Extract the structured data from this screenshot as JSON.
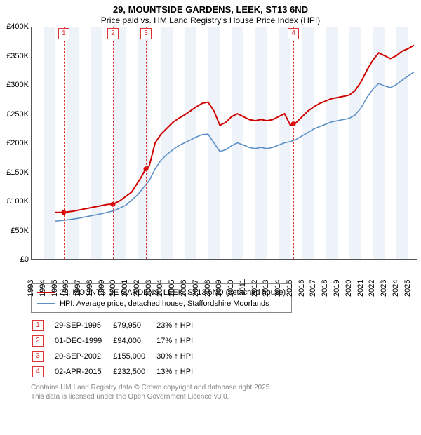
{
  "title": {
    "line1": "29, MOUNTSIDE GARDENS, LEEK, ST13 6ND",
    "line2": "Price paid vs. HM Land Registry's House Price Index (HPI)"
  },
  "chart": {
    "type": "line",
    "background_color": "#ffffff",
    "band_color": "#eef3f9",
    "axis_color": "#555555",
    "ylim": [
      0,
      400000
    ],
    "ytick_step": 50000,
    "yticks": [
      "£0",
      "£50K",
      "£100K",
      "£150K",
      "£200K",
      "£250K",
      "£300K",
      "£350K",
      "£400K"
    ],
    "xlim": [
      1993,
      2025.8
    ],
    "xticks": [
      1993,
      1994,
      1995,
      1996,
      1997,
      1998,
      1999,
      2000,
      2001,
      2002,
      2003,
      2004,
      2005,
      2006,
      2007,
      2008,
      2009,
      2010,
      2011,
      2012,
      2013,
      2014,
      2015,
      2016,
      2017,
      2018,
      2019,
      2020,
      2021,
      2022,
      2023,
      2024,
      2025
    ],
    "series": [
      {
        "name": "price_paid",
        "label": "29, MOUNTSIDE GARDENS, LEEK, ST13 6ND (detached house)",
        "color": "#d00000",
        "line_width": 2,
        "data": [
          [
            1995.0,
            80000
          ],
          [
            1995.7,
            79950
          ],
          [
            1996.5,
            82000
          ],
          [
            1997.5,
            86000
          ],
          [
            1998.5,
            90000
          ],
          [
            1999.5,
            94000
          ],
          [
            1999.9,
            94000
          ],
          [
            2000.5,
            100000
          ],
          [
            2001.5,
            115000
          ],
          [
            2002.3,
            140000
          ],
          [
            2002.7,
            155000
          ],
          [
            2003.0,
            160000
          ],
          [
            2003.5,
            200000
          ],
          [
            2004.0,
            215000
          ],
          [
            2004.5,
            225000
          ],
          [
            2005.0,
            235000
          ],
          [
            2005.5,
            242000
          ],
          [
            2006.0,
            248000
          ],
          [
            2006.5,
            255000
          ],
          [
            2007.0,
            262000
          ],
          [
            2007.5,
            268000
          ],
          [
            2008.0,
            270000
          ],
          [
            2008.5,
            255000
          ],
          [
            2009.0,
            230000
          ],
          [
            2009.5,
            235000
          ],
          [
            2010.0,
            245000
          ],
          [
            2010.5,
            250000
          ],
          [
            2011.0,
            245000
          ],
          [
            2011.5,
            240000
          ],
          [
            2012.0,
            238000
          ],
          [
            2012.5,
            240000
          ],
          [
            2013.0,
            238000
          ],
          [
            2013.5,
            240000
          ],
          [
            2014.0,
            245000
          ],
          [
            2014.5,
            250000
          ],
          [
            2015.0,
            230000
          ],
          [
            2015.25,
            232500
          ],
          [
            2015.5,
            235000
          ],
          [
            2016.0,
            245000
          ],
          [
            2016.5,
            255000
          ],
          [
            2017.0,
            262000
          ],
          [
            2017.5,
            268000
          ],
          [
            2018.0,
            272000
          ],
          [
            2018.5,
            276000
          ],
          [
            2019.0,
            278000
          ],
          [
            2019.5,
            280000
          ],
          [
            2020.0,
            282000
          ],
          [
            2020.5,
            290000
          ],
          [
            2021.0,
            305000
          ],
          [
            2021.5,
            325000
          ],
          [
            2022.0,
            342000
          ],
          [
            2022.5,
            355000
          ],
          [
            2023.0,
            350000
          ],
          [
            2023.5,
            345000
          ],
          [
            2024.0,
            350000
          ],
          [
            2024.5,
            358000
          ],
          [
            2025.0,
            362000
          ],
          [
            2025.5,
            368000
          ]
        ]
      },
      {
        "name": "hpi",
        "label": "HPI: Average price, detached house, Staffordshire Moorlands",
        "color": "#5b8fc7",
        "line_width": 1.6,
        "data": [
          [
            1995.0,
            65000
          ],
          [
            1996.0,
            67000
          ],
          [
            1997.0,
            70000
          ],
          [
            1998.0,
            74000
          ],
          [
            1999.0,
            78000
          ],
          [
            2000.0,
            83000
          ],
          [
            2001.0,
            92000
          ],
          [
            2002.0,
            110000
          ],
          [
            2003.0,
            135000
          ],
          [
            2003.5,
            155000
          ],
          [
            2004.0,
            170000
          ],
          [
            2004.5,
            180000
          ],
          [
            2005.0,
            188000
          ],
          [
            2005.5,
            195000
          ],
          [
            2006.0,
            200000
          ],
          [
            2006.5,
            205000
          ],
          [
            2007.0,
            210000
          ],
          [
            2007.5,
            214000
          ],
          [
            2008.0,
            215000
          ],
          [
            2008.5,
            200000
          ],
          [
            2009.0,
            185000
          ],
          [
            2009.5,
            188000
          ],
          [
            2010.0,
            195000
          ],
          [
            2010.5,
            200000
          ],
          [
            2011.0,
            196000
          ],
          [
            2011.5,
            192000
          ],
          [
            2012.0,
            190000
          ],
          [
            2012.5,
            192000
          ],
          [
            2013.0,
            190000
          ],
          [
            2013.5,
            192000
          ],
          [
            2014.0,
            196000
          ],
          [
            2014.5,
            200000
          ],
          [
            2015.0,
            202000
          ],
          [
            2015.5,
            206000
          ],
          [
            2016.0,
            212000
          ],
          [
            2016.5,
            218000
          ],
          [
            2017.0,
            224000
          ],
          [
            2017.5,
            228000
          ],
          [
            2018.0,
            232000
          ],
          [
            2018.5,
            236000
          ],
          [
            2019.0,
            238000
          ],
          [
            2019.5,
            240000
          ],
          [
            2020.0,
            242000
          ],
          [
            2020.5,
            248000
          ],
          [
            2021.0,
            260000
          ],
          [
            2021.5,
            278000
          ],
          [
            2022.0,
            292000
          ],
          [
            2022.5,
            302000
          ],
          [
            2023.0,
            298000
          ],
          [
            2023.5,
            295000
          ],
          [
            2024.0,
            300000
          ],
          [
            2024.5,
            308000
          ],
          [
            2025.0,
            315000
          ],
          [
            2025.5,
            322000
          ]
        ]
      }
    ],
    "sale_markers": [
      {
        "n": "1",
        "x": 1995.74,
        "y": 79950
      },
      {
        "n": "2",
        "x": 1999.92,
        "y": 94000
      },
      {
        "n": "3",
        "x": 2002.72,
        "y": 155000
      },
      {
        "n": "4",
        "x": 2015.25,
        "y": 232500
      }
    ]
  },
  "legend": {
    "items": [
      {
        "color": "#d00000",
        "label": "29, MOUNTSIDE GARDENS, LEEK, ST13 6ND (detached house)"
      },
      {
        "color": "#5b8fc7",
        "label": "HPI: Average price, detached house, Staffordshire Moorlands"
      }
    ]
  },
  "sales": [
    {
      "n": "1",
      "date": "29-SEP-1995",
      "price": "£79,950",
      "delta": "23% ↑ HPI"
    },
    {
      "n": "2",
      "date": "01-DEC-1999",
      "price": "£94,000",
      "delta": "17% ↑ HPI"
    },
    {
      "n": "3",
      "date": "20-SEP-2002",
      "price": "£155,000",
      "delta": "30% ↑ HPI"
    },
    {
      "n": "4",
      "date": "02-APR-2015",
      "price": "£232,500",
      "delta": "13% ↑ HPI"
    }
  ],
  "footer": {
    "line1": "Contains HM Land Registry data © Crown copyright and database right 2025.",
    "line2": "This data is licensed under the Open Government Licence v3.0."
  }
}
